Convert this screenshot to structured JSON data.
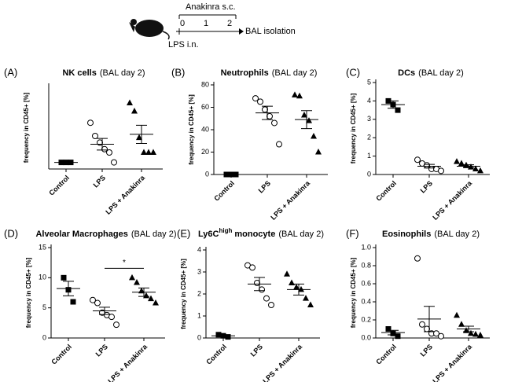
{
  "schematic": {
    "treatment": "Anakinra s.c.",
    "days": [
      0,
      1,
      2
    ],
    "endpoint": "BAL isolation",
    "challenge": "LPS i.n."
  },
  "chart_data": [
    {
      "type": "scatter",
      "label": "(A)",
      "title": "NK cells",
      "subtitle": "(BAL day 2)",
      "ylabel": "frequency in CD45+ [%]",
      "categories": [
        "Control",
        "LPS",
        "LPS + Anakinra"
      ],
      "markers": [
        "square",
        "circle",
        "triangle"
      ],
      "ylim": [
        0,
        5
      ],
      "groups": [
        {
          "values": [
            0.4,
            0.4,
            0.4
          ],
          "mean": 0.4,
          "sem": 0.03
        },
        {
          "values": [
            2.8,
            2.0,
            1.6,
            1.2,
            1.0,
            0.4
          ],
          "mean": 1.5,
          "sem": 0.35
        },
        {
          "values": [
            4.0,
            3.5,
            1.9,
            1.0,
            1.0,
            1.0
          ],
          "mean": 2.1,
          "sem": 0.55
        }
      ]
    },
    {
      "type": "scatter",
      "label": "(B)",
      "title": "Neutrophils",
      "subtitle": "(BAL day 2)",
      "ylabel": "frequency in CD45+ [%]",
      "categories": [
        "Control",
        "LPS",
        "LPS + Anakinra"
      ],
      "markers": [
        "square",
        "circle",
        "triangle"
      ],
      "ylim": [
        0,
        80
      ],
      "yticks": [
        0,
        20,
        40,
        60,
        80
      ],
      "groups": [
        {
          "values": [
            0,
            0,
            0
          ],
          "mean": 0,
          "sem": 0.2
        },
        {
          "values": [
            68,
            65,
            58,
            52,
            46,
            27
          ],
          "mean": 55,
          "sem": 6
        },
        {
          "values": [
            71,
            70,
            53,
            48,
            34,
            20
          ],
          "mean": 49,
          "sem": 8
        }
      ]
    },
    {
      "type": "scatter",
      "label": "(C)",
      "title": "DCs",
      "subtitle": "(BAL day 2)",
      "ylabel": "frequency in CD45+ [%]",
      "categories": [
        "Control",
        "LPS",
        "LPS + Anakinra"
      ],
      "markers": [
        "square",
        "circle",
        "triangle"
      ],
      "ylim": [
        0,
        5
      ],
      "yticks": [
        0,
        1,
        2,
        3,
        4,
        5
      ],
      "groups": [
        {
          "values": [
            4.0,
            3.8,
            3.5
          ],
          "mean": 3.8,
          "sem": 0.2
        },
        {
          "values": [
            0.8,
            0.6,
            0.5,
            0.3,
            0.3,
            0.2
          ],
          "mean": 0.45,
          "sem": 0.1
        },
        {
          "values": [
            0.7,
            0.6,
            0.5,
            0.4,
            0.3,
            0.2
          ],
          "mean": 0.45,
          "sem": 0.08
        }
      ]
    },
    {
      "type": "scatter",
      "label": "(D)",
      "title": "Alveolar  Macrophages",
      "subtitle": "(BAL day 2)",
      "ylabel": "frequency in CD45+ [%]",
      "categories": [
        "Control",
        "LPS",
        "LPS + Anakinra"
      ],
      "markers": [
        "square",
        "circle",
        "triangle"
      ],
      "ylim": [
        0,
        15
      ],
      "yticks": [
        0,
        5,
        10,
        15
      ],
      "annotation": "*",
      "groups": [
        {
          "values": [
            10,
            8,
            6
          ],
          "mean": 8.2,
          "sem": 1.2
        },
        {
          "values": [
            6.3,
            5.8,
            4.2,
            3.8,
            3.5,
            2.2
          ],
          "mean": 4.5,
          "sem": 0.6
        },
        {
          "values": [
            10,
            9.2,
            7.8,
            7,
            6.5,
            5.8
          ],
          "mean": 7.6,
          "sem": 0.7
        }
      ]
    },
    {
      "type": "scatter",
      "label": "(E)",
      "title": "Ly6C",
      "title_superscript": "high",
      "title_suffix": "monocyte",
      "subtitle": "(BAL day 2)",
      "ylabel": "frequency in CD45+ [%]",
      "categories": [
        "Control",
        "LPS",
        "LPS + Anakinra"
      ],
      "markers": [
        "square",
        "circle",
        "triangle"
      ],
      "ylim": [
        0,
        4
      ],
      "yticks": [
        0,
        1,
        2,
        3,
        4
      ],
      "groups": [
        {
          "values": [
            0.15,
            0.1,
            0.05
          ],
          "mean": 0.1,
          "sem": 0.03
        },
        {
          "values": [
            3.3,
            3.2,
            2.5,
            2.2,
            1.8,
            1.5
          ],
          "mean": 2.45,
          "sem": 0.3
        },
        {
          "values": [
            2.9,
            2.5,
            2.3,
            2.2,
            1.8,
            1.5
          ],
          "mean": 2.2,
          "sem": 0.25
        }
      ]
    },
    {
      "type": "scatter",
      "label": "(F)",
      "title": "Eosinophils",
      "subtitle": "(BAL day 2)",
      "ylabel": "frequency in CD45+ [%]",
      "categories": [
        "Control",
        "LPS",
        "LPS + Anakinra"
      ],
      "markers": [
        "square",
        "circle",
        "triangle"
      ],
      "ylim": [
        0,
        1
      ],
      "yticks": [
        {
          "value": 0,
          "label": "0.0"
        },
        {
          "value": 0.2,
          "label": "0.2"
        },
        {
          "value": 0.4,
          "label": "0.4"
        },
        {
          "value": 0.6,
          "label": "0.6"
        },
        {
          "value": 0.8,
          "label": "0.8"
        },
        {
          "value": 1,
          "label": "1.0"
        }
      ],
      "groups": [
        {
          "values": [
            0.1,
            0.05,
            0.02
          ],
          "mean": 0.06,
          "sem": 0.025
        },
        {
          "values": [
            0.88,
            0.15,
            0.1,
            0.05,
            0.05,
            0.02
          ],
          "mean": 0.21,
          "sem": 0.14
        },
        {
          "values": [
            0.25,
            0.15,
            0.08,
            0.05,
            0.04,
            0.03
          ],
          "mean": 0.1,
          "sem": 0.03
        }
      ]
    }
  ]
}
